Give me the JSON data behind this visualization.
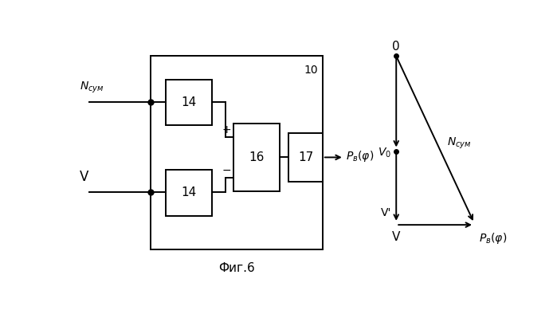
{
  "fig_width": 6.99,
  "fig_height": 3.94,
  "dpi": 100,
  "bg_color": "#ffffff",
  "caption": "Фиг.6",
  "block10_label": "10",
  "block14_label": "14",
  "block16_label": "16",
  "block17_label": "17",
  "label_Nsum": "N_{сум}",
  "label_V": "V",
  "label_Pvf_exit": "P_{в}(ф)",
  "label_0": "0",
  "label_V0": "V_0",
  "label_Vprime": "V'",
  "label_V_bottom": "V",
  "label_Pvf_bottom": "P_{в}(ф)",
  "label_Nsum_right": "N_{сум}"
}
